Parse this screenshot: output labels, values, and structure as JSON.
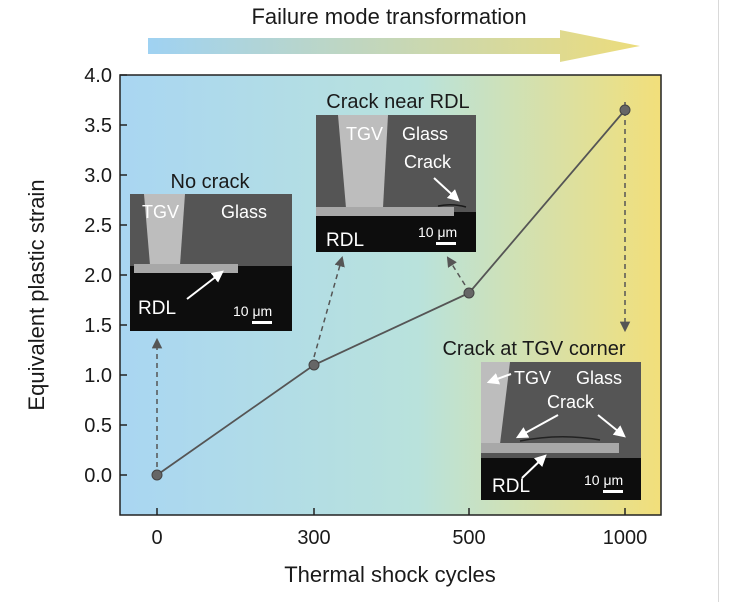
{
  "chart_data": {
    "type": "line",
    "title": "",
    "banner": "Failure mode transformation",
    "xlabel": "Thermal shock cycles",
    "ylabel": "Equivalent plastic strain",
    "x_categories": [
      "0",
      "300",
      "500",
      "1000"
    ],
    "y_ticks": [
      "0.0",
      "0.5",
      "1.0",
      "1.5",
      "2.0",
      "2.5",
      "3.0",
      "3.5",
      "4.0"
    ],
    "ylim": [
      -0.4,
      4.0
    ],
    "grid": false,
    "series": [
      {
        "name": "",
        "values": [
          0.0,
          1.1,
          1.82,
          3.65
        ]
      }
    ],
    "colors": {
      "line": "#555555",
      "marker": "#666666",
      "gradient_start": "#a9d6f2",
      "gradient_mid": "#b9e2dc",
      "gradient_end": "#f2df7a"
    }
  },
  "insets": [
    {
      "title": "No crack",
      "labels": {
        "tgv": "TGV",
        "glass": "Glass",
        "rdl": "RDL",
        "scale": "10 μm"
      }
    },
    {
      "title": "Crack near RDL",
      "labels": {
        "tgv": "TGV",
        "glass": "Glass",
        "crack": "Crack",
        "rdl": "RDL",
        "scale": "10 μm"
      }
    },
    {
      "title": "Crack at TGV corner",
      "labels": {
        "tgv": "TGV",
        "glass": "Glass",
        "crack": "Crack",
        "rdl": "RDL",
        "scale": "10 μm"
      }
    }
  ]
}
